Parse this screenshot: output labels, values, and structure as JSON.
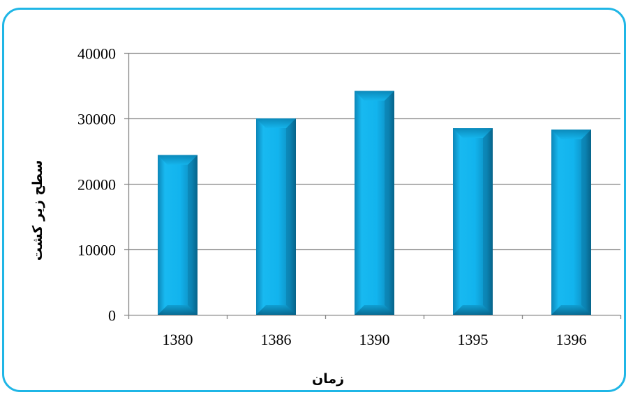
{
  "chart_data": {
    "type": "bar",
    "categories": [
      "1380",
      "1386",
      "1390",
      "1395",
      "1396"
    ],
    "values": [
      24400,
      30000,
      34200,
      28500,
      28300
    ],
    "xlabel": "زمان",
    "ylabel": "سطح زیر کشت",
    "ylim": [
      0,
      40000
    ],
    "yticks": [
      "0",
      "10000",
      "20000",
      "30000",
      "40000"
    ],
    "grid": true
  },
  "colors": {
    "bar": "#14b7ee",
    "bar_dark": "#0a6e96",
    "frame": "#1fb6e6",
    "grid": "#888888"
  }
}
